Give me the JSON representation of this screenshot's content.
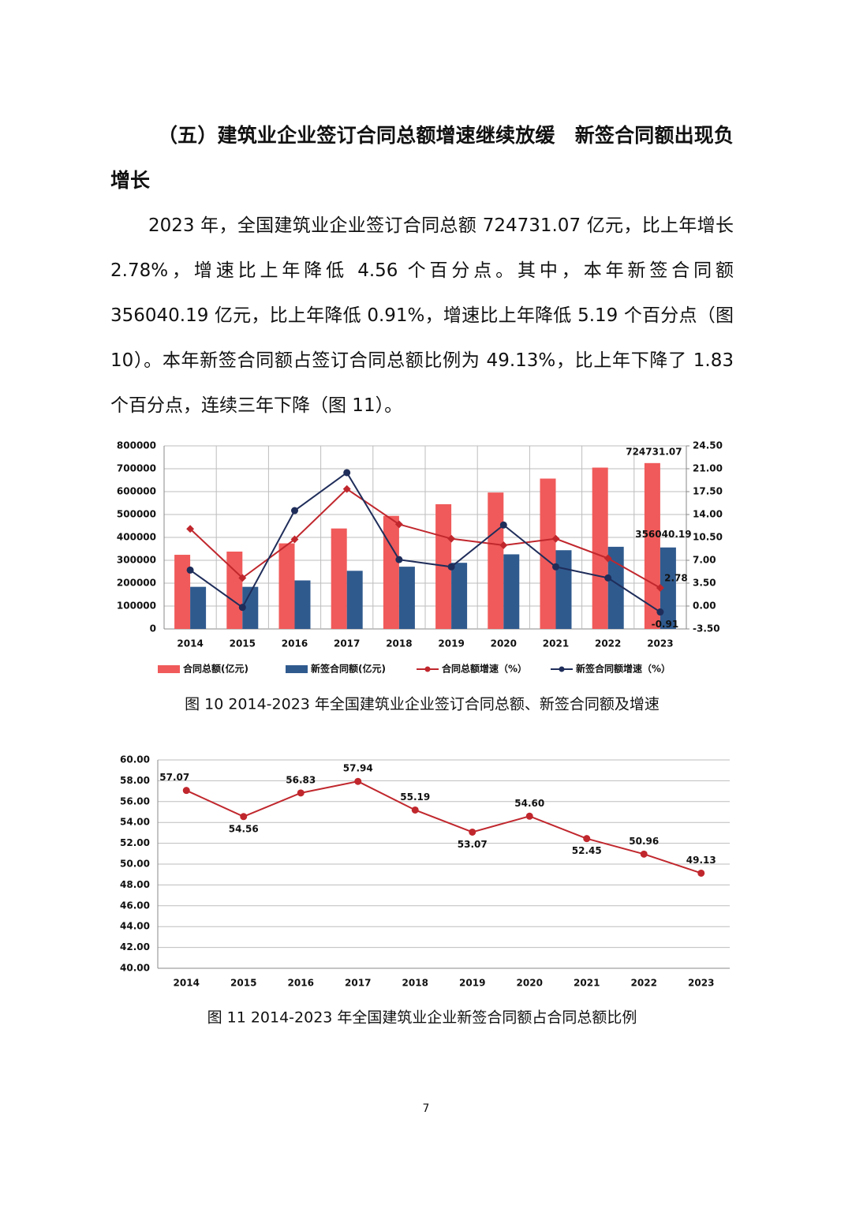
{
  "heading": "（五）建筑业企业签订合同总额增速继续放缓　新签合同额出现负增长",
  "paragraph": "2023 年，全国建筑业企业签订合同总额 724731.07 亿元，比上年增长 2.78%，增速比上年降低 4.56 个百分点。其中，本年新签合同额 356040.19 亿元，比上年降低 0.91%，增速比上年降低 5.19 个百分点（图 10）。本年新签合同额占签订合同总额比例为 49.13%，比上年下降了 1.83 个百分点，连续三年下降（图 11）。",
  "chart_data": [
    {
      "type": "combo",
      "title": "图 10  2014-2023 年全国建筑业企业签订合同总额、新签合同额及增速",
      "categories": [
        "2014",
        "2015",
        "2016",
        "2017",
        "2018",
        "2019",
        "2020",
        "2021",
        "2022",
        "2023"
      ],
      "series": [
        {
          "name": "合同总额(亿元)",
          "type": "bar",
          "color": "#f05a5a",
          "values": [
            324000,
            338000,
            374000,
            439000,
            494000,
            545000,
            596000,
            657000,
            705000,
            724731.07
          ]
        },
        {
          "name": "新签合同额(亿元)",
          "type": "bar",
          "color": "#2f5a8e",
          "values": [
            184000,
            184000,
            212000,
            254000,
            272000,
            289000,
            326000,
            344000,
            359000,
            356040.19
          ]
        },
        {
          "name": "合同总额增速（%）",
          "type": "line",
          "axis": "y2",
          "color": "#c0272d",
          "values": [
            11.8,
            4.3,
            10.2,
            17.9,
            12.5,
            10.3,
            9.3,
            10.3,
            7.3,
            2.78
          ]
        },
        {
          "name": "新签合同额增速（%）",
          "type": "line",
          "axis": "y2",
          "color": "#1f2d5a",
          "values": [
            5.5,
            -0.2,
            14.6,
            20.4,
            7.1,
            6.0,
            12.4,
            6.0,
            4.3,
            -0.91
          ]
        }
      ],
      "ylim": [
        0,
        800000
      ],
      "yticks": [
        0,
        100000,
        200000,
        300000,
        400000,
        500000,
        600000,
        700000,
        800000
      ],
      "y2lim": [
        -3.5,
        24.5
      ],
      "y2ticks": [
        {
          "value": -3.5,
          "label": "-3.50"
        },
        {
          "value": 0,
          "label": "0.00"
        },
        {
          "value": 3.5,
          "label": "3.50"
        },
        {
          "value": 7,
          "label": "7.00"
        },
        {
          "value": 10.5,
          "label": "10.50"
        },
        {
          "value": 14,
          "label": "14.00"
        },
        {
          "value": 17.5,
          "label": "17.50"
        },
        {
          "value": 21,
          "label": "21.00"
        },
        {
          "value": 24.5,
          "label": "24.50"
        }
      ],
      "grid": true,
      "data_labels": "last",
      "legend": "bottom"
    },
    {
      "type": "line",
      "title": "图 11  2014-2023 年全国建筑业企业新签合同额占合同总额比例",
      "categories": [
        "2014",
        "2015",
        "2016",
        "2017",
        "2018",
        "2019",
        "2020",
        "2021",
        "2022",
        "2023"
      ],
      "values": [
        57.07,
        54.56,
        56.83,
        57.94,
        55.19,
        53.07,
        54.6,
        52.45,
        50.96,
        49.13
      ],
      "value_labels": [
        "57.07",
        "54.56",
        "56.83",
        "57.94",
        "55.19",
        "53.07",
        "54.60",
        "52.45",
        "50.96",
        "49.13"
      ],
      "color": "#c0272d",
      "ylim": [
        40,
        60
      ],
      "yticks": [
        {
          "value": 40,
          "label": "40.00"
        },
        {
          "value": 42,
          "label": "42.00"
        },
        {
          "value": 44,
          "label": "44.00"
        },
        {
          "value": 46,
          "label": "46.00"
        },
        {
          "value": 48,
          "label": "48.00"
        },
        {
          "value": 50,
          "label": "50.00"
        },
        {
          "value": 52,
          "label": "52.00"
        },
        {
          "value": 54,
          "label": "54.00"
        },
        {
          "value": 56,
          "label": "56.00"
        },
        {
          "value": 58,
          "label": "58.00"
        },
        {
          "value": 60,
          "label": "60.00"
        }
      ],
      "grid": true
    }
  ],
  "page_number": "7"
}
